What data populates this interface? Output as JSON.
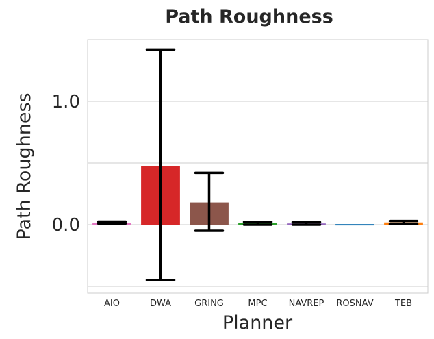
{
  "chart_data": {
    "type": "bar",
    "title": "Path Roughness",
    "xlabel": "Planner",
    "ylabel": "Path Roughness",
    "categories": [
      "AIO",
      "DWA",
      "GRING",
      "MPC",
      "NAVREP",
      "ROSNAV",
      "TEB"
    ],
    "values": [
      0.015,
      0.475,
      0.18,
      0.012,
      0.01,
      0.005,
      0.018
    ],
    "error_low": [
      0.01,
      -0.45,
      -0.05,
      0.0,
      0.0,
      0.005,
      0.005
    ],
    "error_high": [
      0.025,
      1.42,
      0.42,
      0.022,
      0.02,
      0.005,
      0.03
    ],
    "colors": [
      "#e377c2",
      "#d62728",
      "#8c564b",
      "#2ca02c",
      "#9467bd",
      "#1f77b4",
      "#ff7f0e"
    ],
    "yticks": [
      0.0,
      1.0
    ],
    "ytick_labels": [
      "0.0",
      "1.0"
    ],
    "ylim": [
      -0.5,
      1.5
    ],
    "grid": true,
    "legend": "none"
  }
}
